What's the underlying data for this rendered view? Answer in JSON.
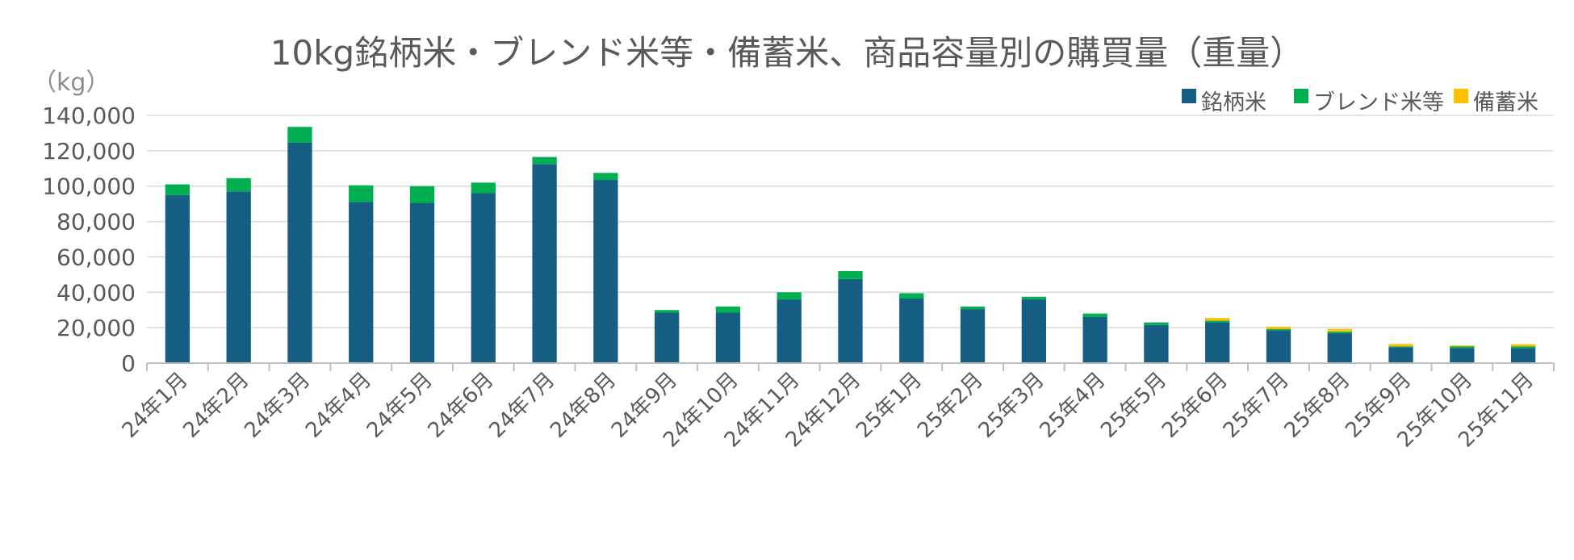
{
  "chart_data": {
    "type": "bar",
    "stacked": true,
    "title": "10kg銘柄米・ブレンド米等・備蓄米、商品容量別の購買量（重量）",
    "ylabel": "（kg）",
    "xlabel": "",
    "ylim": [
      0,
      140000
    ],
    "yticks": [
      0,
      20000,
      40000,
      60000,
      80000,
      100000,
      120000,
      140000
    ],
    "ytick_labels": [
      "0",
      "20,000",
      "40,000",
      "60,000",
      "80,000",
      "100,000",
      "120,000",
      "140,000"
    ],
    "grid": true,
    "legend_position": "top-right",
    "categories": [
      "24年1月",
      "24年2月",
      "24年3月",
      "24年4月",
      "24年5月",
      "24年6月",
      "24年7月",
      "24年8月",
      "24年9月",
      "24年10月",
      "24年11月",
      "24年12月",
      "25年1月",
      "25年2月",
      "25年3月",
      "25年4月",
      "25年5月",
      "25年6月",
      "25年7月",
      "25年8月",
      "25年9月",
      "25年10月",
      "25年11月"
    ],
    "series": [
      {
        "name": "銘柄米",
        "color": "#175e84",
        "values": [
          95000,
          97000,
          124500,
          91000,
          90500,
          96000,
          112500,
          103500,
          28500,
          28500,
          36000,
          47500,
          36500,
          30500,
          36000,
          26000,
          21500,
          23000,
          18500,
          17000,
          9000,
          8500,
          8500
        ]
      },
      {
        "name": "ブレンド米等",
        "color": "#00b050",
        "values": [
          6000,
          7500,
          9000,
          9500,
          9500,
          6000,
          4000,
          4000,
          1500,
          3500,
          4000,
          4500,
          3000,
          1500,
          1500,
          2000,
          1500,
          1000,
          800,
          800,
          500,
          1000,
          1000
        ]
      },
      {
        "name": "備蓄米",
        "color": "#ffc000",
        "values": [
          0,
          0,
          0,
          0,
          0,
          0,
          0,
          0,
          0,
          0,
          0,
          0,
          0,
          0,
          0,
          0,
          0,
          1500,
          1300,
          1500,
          1300,
          500,
          1200
        ]
      }
    ]
  }
}
